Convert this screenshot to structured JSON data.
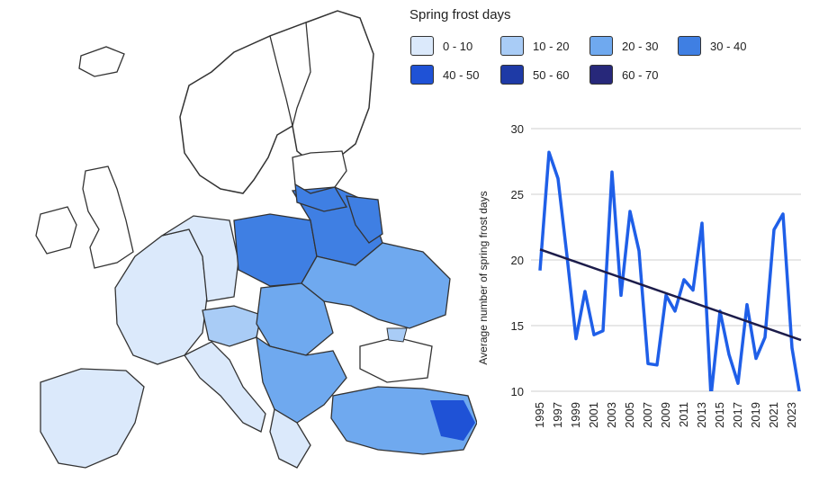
{
  "legend": {
    "title": "Spring frost days",
    "items": [
      {
        "label": "0 - 10",
        "color": "#dbe9fb"
      },
      {
        "label": "10 - 20",
        "color": "#a9ccf6"
      },
      {
        "label": "20 - 30",
        "color": "#6fa9ef"
      },
      {
        "label": "30 - 40",
        "color": "#3f7fe3"
      },
      {
        "label": "40 - 50",
        "color": "#1f52d6"
      },
      {
        "label": "50 - 60",
        "color": "#1e3aa6"
      },
      {
        "label": "60 - 70",
        "color": "#27287a"
      }
    ]
  },
  "chart_data": {
    "type": "line",
    "ylabel": "Average number of spring frost days",
    "ylim": [
      10,
      30
    ],
    "yticks": [
      10,
      15,
      20,
      25,
      30
    ],
    "xtick_labels": [
      "1995",
      "1997",
      "1999",
      "2001",
      "2003",
      "2005",
      "2007",
      "2009",
      "2011",
      "2013",
      "2015",
      "2017",
      "2019",
      "2021",
      "2023"
    ],
    "grid": true,
    "series": [
      {
        "color": "#1f5fe8",
        "x": [
          1995,
          1996,
          1997,
          1998,
          1999,
          2000,
          2001,
          2002,
          2003,
          2004,
          2005,
          2006,
          2007,
          2008,
          2009,
          2010,
          2011,
          2012,
          2013,
          2014,
          2015,
          2016,
          2017,
          2018,
          2019,
          2020,
          2021,
          2022,
          2023,
          2024
        ],
        "values": [
          19.2,
          28.2,
          26.2,
          20.3,
          14.0,
          17.6,
          14.3,
          14.6,
          26.7,
          17.3,
          23.7,
          20.7,
          12.1,
          12.0,
          17.3,
          16.1,
          18.5,
          17.7,
          22.8,
          9.6,
          16.1,
          12.8,
          10.6,
          16.6,
          12.5,
          14.1,
          22.3,
          23.5,
          13.3,
          9.2
        ]
      },
      {
        "color": "#1c1c4a",
        "x": [
          1995,
          2024
        ],
        "values": [
          20.8,
          13.9
        ]
      }
    ]
  }
}
